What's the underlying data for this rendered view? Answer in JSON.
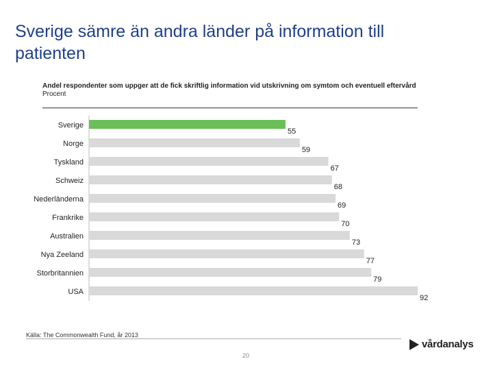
{
  "title": "Sverige sämre än andra länder på information till patienten",
  "chart_data": {
    "type": "bar",
    "orientation": "horizontal",
    "title": "Andel respondenter som uppger att de fick skriftlig information vid utskrivning om symtom och eventuell eftervård",
    "unit": "Procent",
    "categories": [
      "Sverige",
      "Norge",
      "Tyskland",
      "Schweiz",
      "Nederländerna",
      "Frankrike",
      "Australien",
      "Nya Zeeland",
      "Storbritannien",
      "USA"
    ],
    "values": [
      55,
      59,
      67,
      68,
      69,
      70,
      73,
      77,
      79,
      92
    ],
    "highlight_index": 0,
    "highlight_color": "#6abf59",
    "bar_color": "#d9d9d9",
    "xlim": [
      0,
      100
    ]
  },
  "footer": {
    "source": "Källa: The Commonwealth Fund, år 2013",
    "page_number": "20",
    "logo_text": "vårdanalys"
  }
}
